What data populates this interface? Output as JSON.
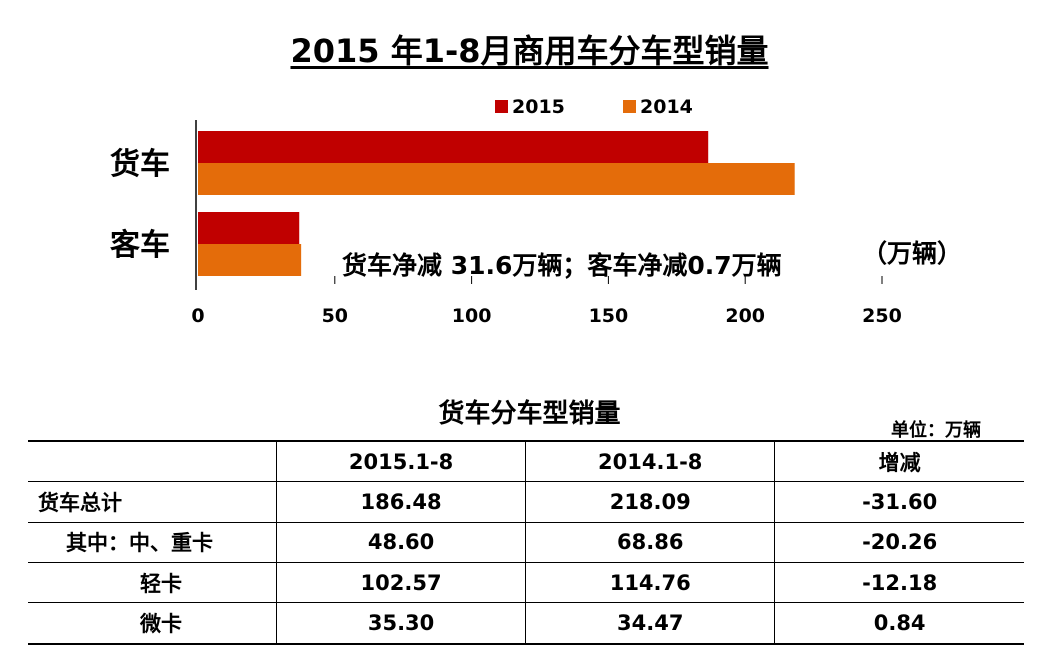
{
  "title": "2015 年1-8月商用车分车型销量",
  "chart_data": {
    "type": "bar",
    "orientation": "horizontal",
    "categories": [
      "货车",
      "客车"
    ],
    "series": [
      {
        "name": "2015",
        "color": "#C00000",
        "values": [
          186.48,
          37
        ]
      },
      {
        "name": "2014",
        "color": "#E46C0A",
        "values": [
          218.09,
          37.7
        ]
      }
    ],
    "xlim": [
      0,
      250
    ],
    "xticks": [
      "0",
      "50",
      "100",
      "150",
      "200",
      "250"
    ],
    "unit_label": "（万辆）",
    "annotation": "货车净减 31.6万辆；客车净减0.7万辆",
    "legend_position": "top",
    "grid": false
  },
  "table": {
    "title": "货车分车型销量",
    "unit": "单位：万辆",
    "headers": [
      "",
      "2015.1-8",
      "2014.1-8",
      "增减"
    ],
    "rows": [
      {
        "label": "货车总计",
        "indent": 0,
        "values": [
          "186.48",
          "218.09",
          "-31.60"
        ]
      },
      {
        "label": "其中：中、重卡",
        "indent": 1,
        "values": [
          "48.60",
          "68.86",
          "-20.26"
        ]
      },
      {
        "label": "轻卡",
        "indent": 2,
        "values": [
          "102.57",
          "114.76",
          "-12.18"
        ]
      },
      {
        "label": "微卡",
        "indent": 2,
        "values": [
          "35.30",
          "34.47",
          "0.84"
        ]
      }
    ]
  }
}
